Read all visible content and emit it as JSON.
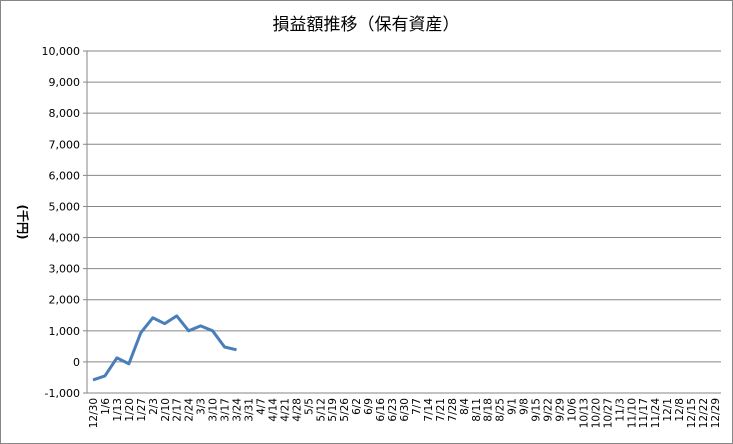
{
  "chart_data": {
    "type": "line",
    "title": "損益額推移（保有資産）",
    "y_label": "(千円)",
    "categories": [
      "12/30",
      "1/6",
      "1/13",
      "1/20",
      "1/27",
      "2/3",
      "2/10",
      "2/17",
      "2/24",
      "3/3",
      "3/10",
      "3/17",
      "3/24",
      "3/31",
      "4/7",
      "4/14",
      "4/21",
      "4/28",
      "5/5",
      "5/12",
      "5/19",
      "5/26",
      "6/2",
      "6/9",
      "6/16",
      "6/23",
      "6/30",
      "7/7",
      "7/14",
      "7/21",
      "7/28",
      "8/4",
      "8/11",
      "8/18",
      "8/25",
      "9/1",
      "9/8",
      "9/15",
      "9/22",
      "9/29",
      "10/6",
      "10/13",
      "10/20",
      "10/27",
      "11/3",
      "11/10",
      "11/17",
      "11/24",
      "12/1",
      "12/8",
      "12/15",
      "12/22",
      "12/29"
    ],
    "series": [
      {
        "color": "#4a7ebb",
        "values": [
          -580,
          -450,
          130,
          -60,
          940,
          1420,
          1230,
          1480,
          1000,
          1160,
          1000,
          480,
          390,
          null,
          null,
          null,
          null,
          null,
          null,
          null,
          null,
          null,
          null,
          null,
          null,
          null,
          null,
          null,
          null,
          null,
          null,
          null,
          null,
          null,
          null,
          null,
          null,
          null,
          null,
          null,
          null,
          null,
          null,
          null,
          null,
          null,
          null,
          null,
          null,
          null,
          null,
          null,
          null
        ]
      }
    ],
    "ylim": [
      -1000,
      10000
    ],
    "yticks": [
      {
        "value": -1000,
        "label": "-1,000"
      },
      0,
      {
        "value": 1000,
        "label": "1,000"
      },
      {
        "value": 2000,
        "label": "2,000"
      },
      {
        "value": 3000,
        "label": "3,000"
      },
      {
        "value": 4000,
        "label": "4,000"
      },
      {
        "value": 5000,
        "label": "5,000"
      },
      {
        "value": 6000,
        "label": "6,000"
      },
      {
        "value": 7000,
        "label": "7,000"
      },
      {
        "value": 8000,
        "label": "8,000"
      },
      {
        "value": 9000,
        "label": "9,000"
      },
      {
        "value": 10000,
        "label": "10,000"
      }
    ],
    "grid": true
  }
}
